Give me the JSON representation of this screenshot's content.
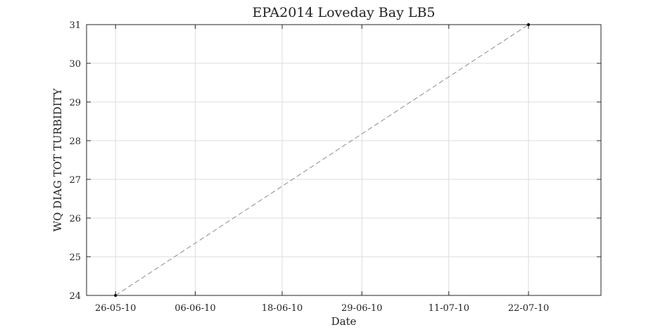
{
  "chart_data": {
    "type": "line",
    "title": "EPA2014 Loveday Bay LB5",
    "xlabel": "Date",
    "ylabel": "WQ DIAG TOT TURBIDITY",
    "x_ticks": [
      "26-05-10",
      "06-06-10",
      "18-06-10",
      "29-06-10",
      "11-07-10",
      "22-07-10"
    ],
    "y_ticks": [
      "24",
      "25",
      "26",
      "27",
      "28",
      "29",
      "30",
      "31"
    ],
    "xlim": [
      "2010-05-22",
      "2010-08-01"
    ],
    "ylim": [
      24,
      31
    ],
    "grid": true,
    "series": [
      {
        "x": [
          "2010-05-26",
          "2010-07-22"
        ],
        "values": [
          24,
          31
        ],
        "color": "#8c8c8c",
        "marker_color": "#000000",
        "line_style": "dashed"
      }
    ]
  }
}
